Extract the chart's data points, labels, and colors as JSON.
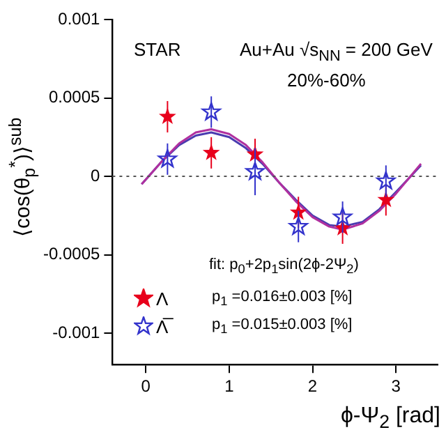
{
  "chart_data": {
    "type": "scatter",
    "xlabel": "ϕ-Ψ$_{2}$ [rad]",
    "ylabel": "⟨cos(θ$_{p}$$^{*}$)⟩$^{sub}$",
    "x": [
      0.26,
      0.785,
      1.31,
      1.83,
      2.36,
      2.88
    ],
    "xlim": [
      -0.4,
      3.5
    ],
    "xticks": [
      0,
      1,
      2,
      3
    ],
    "ylim": [
      -0.0012,
      0.001
    ],
    "yticks": [
      -0.001,
      -0.0005,
      0,
      0.0005,
      0.001
    ],
    "grid": false,
    "legend": "bottom left",
    "series": [
      {
        "name": "Λ",
        "type": "scatter",
        "marker": "star",
        "color": "#e8001c",
        "values": [
          0.00038,
          0.00015,
          0.00014,
          -0.00023,
          -0.00033,
          -0.00015
        ],
        "errors": [
          0.0001,
          0.0001,
          0.0001,
          0.0001,
          0.0001,
          0.0001
        ]
      },
      {
        "name": "Λ̅",
        "type": "scatter",
        "marker": "star",
        "color": "#3333cc",
        "values": [
          0.00011,
          0.00041,
          3e-05,
          -0.00032,
          -0.00026,
          -3e-05
        ],
        "errors": [
          0.0001,
          0.0001,
          0.00015,
          0.0001,
          0.0001,
          0.0001
        ]
      },
      {
        "type": "line",
        "marker": "none",
        "color": "#b0309f",
        "x": [
          -0.05,
          0.2,
          0.4,
          0.6,
          0.785,
          1.0,
          1.2,
          1.4,
          1.6,
          1.8,
          2.0,
          2.2,
          2.36,
          2.6,
          2.8,
          3.0,
          3.3
        ],
        "values": [
          -5e-05,
          0.0001,
          0.00021,
          0.00028,
          0.0003,
          0.00027,
          0.0002,
          9e-05,
          -4e-05,
          -0.00016,
          -0.00026,
          -0.00032,
          -0.00034,
          -0.0003,
          -0.00022,
          -0.00011,
          8e-05
        ]
      },
      {
        "type": "line",
        "marker": "none",
        "color": "#4a3bb0",
        "x": [
          -0.05,
          0.2,
          0.4,
          0.6,
          0.785,
          1.0,
          1.2,
          1.4,
          1.6,
          1.8,
          2.0,
          2.2,
          2.36,
          2.6,
          2.8,
          3.0,
          3.3
        ],
        "values": [
          -5e-05,
          0.0001,
          0.0002,
          0.00026,
          0.00028,
          0.00025,
          0.00018,
          8e-05,
          -4e-05,
          -0.00015,
          -0.00025,
          -0.00031,
          -0.00032,
          -0.00029,
          -0.00021,
          -0.0001,
          7e-05
        ]
      }
    ],
    "ref_lines": [
      {
        "axis": "y",
        "value": 0,
        "color": "#555555",
        "line_style": "dotted"
      }
    ],
    "annotations": [
      "STAR",
      "Au+Au √s$_{NN}$ = 200 GeV",
      "20%-60%",
      "fit: p$_{0}$+2p$_{1}$sin(2ϕ-2Ψ$_{2}$)",
      "p$_{1}$ =0.016±0.003 [%]",
      "p$_{1}$ =0.015±0.003 [%]"
    ]
  }
}
